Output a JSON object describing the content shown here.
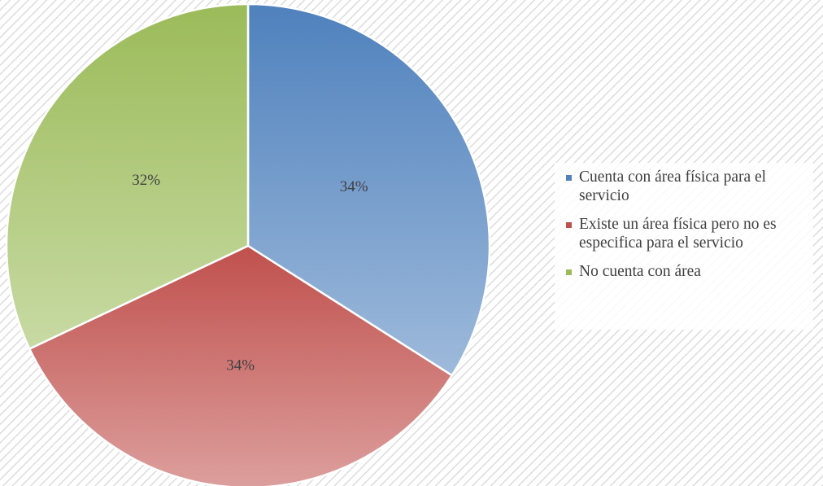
{
  "chart_data": {
    "type": "pie",
    "categories": [
      "Cuenta con área física para el servicio",
      "Existe un área física pero no es especifica para el servicio",
      "No cuenta con área"
    ],
    "values": [
      34,
      34,
      32
    ],
    "value_labels": [
      "34%",
      "34%",
      "32%"
    ],
    "colors": [
      "#4f81bd",
      "#c0504d",
      "#9bbb59"
    ],
    "legend": "right"
  }
}
